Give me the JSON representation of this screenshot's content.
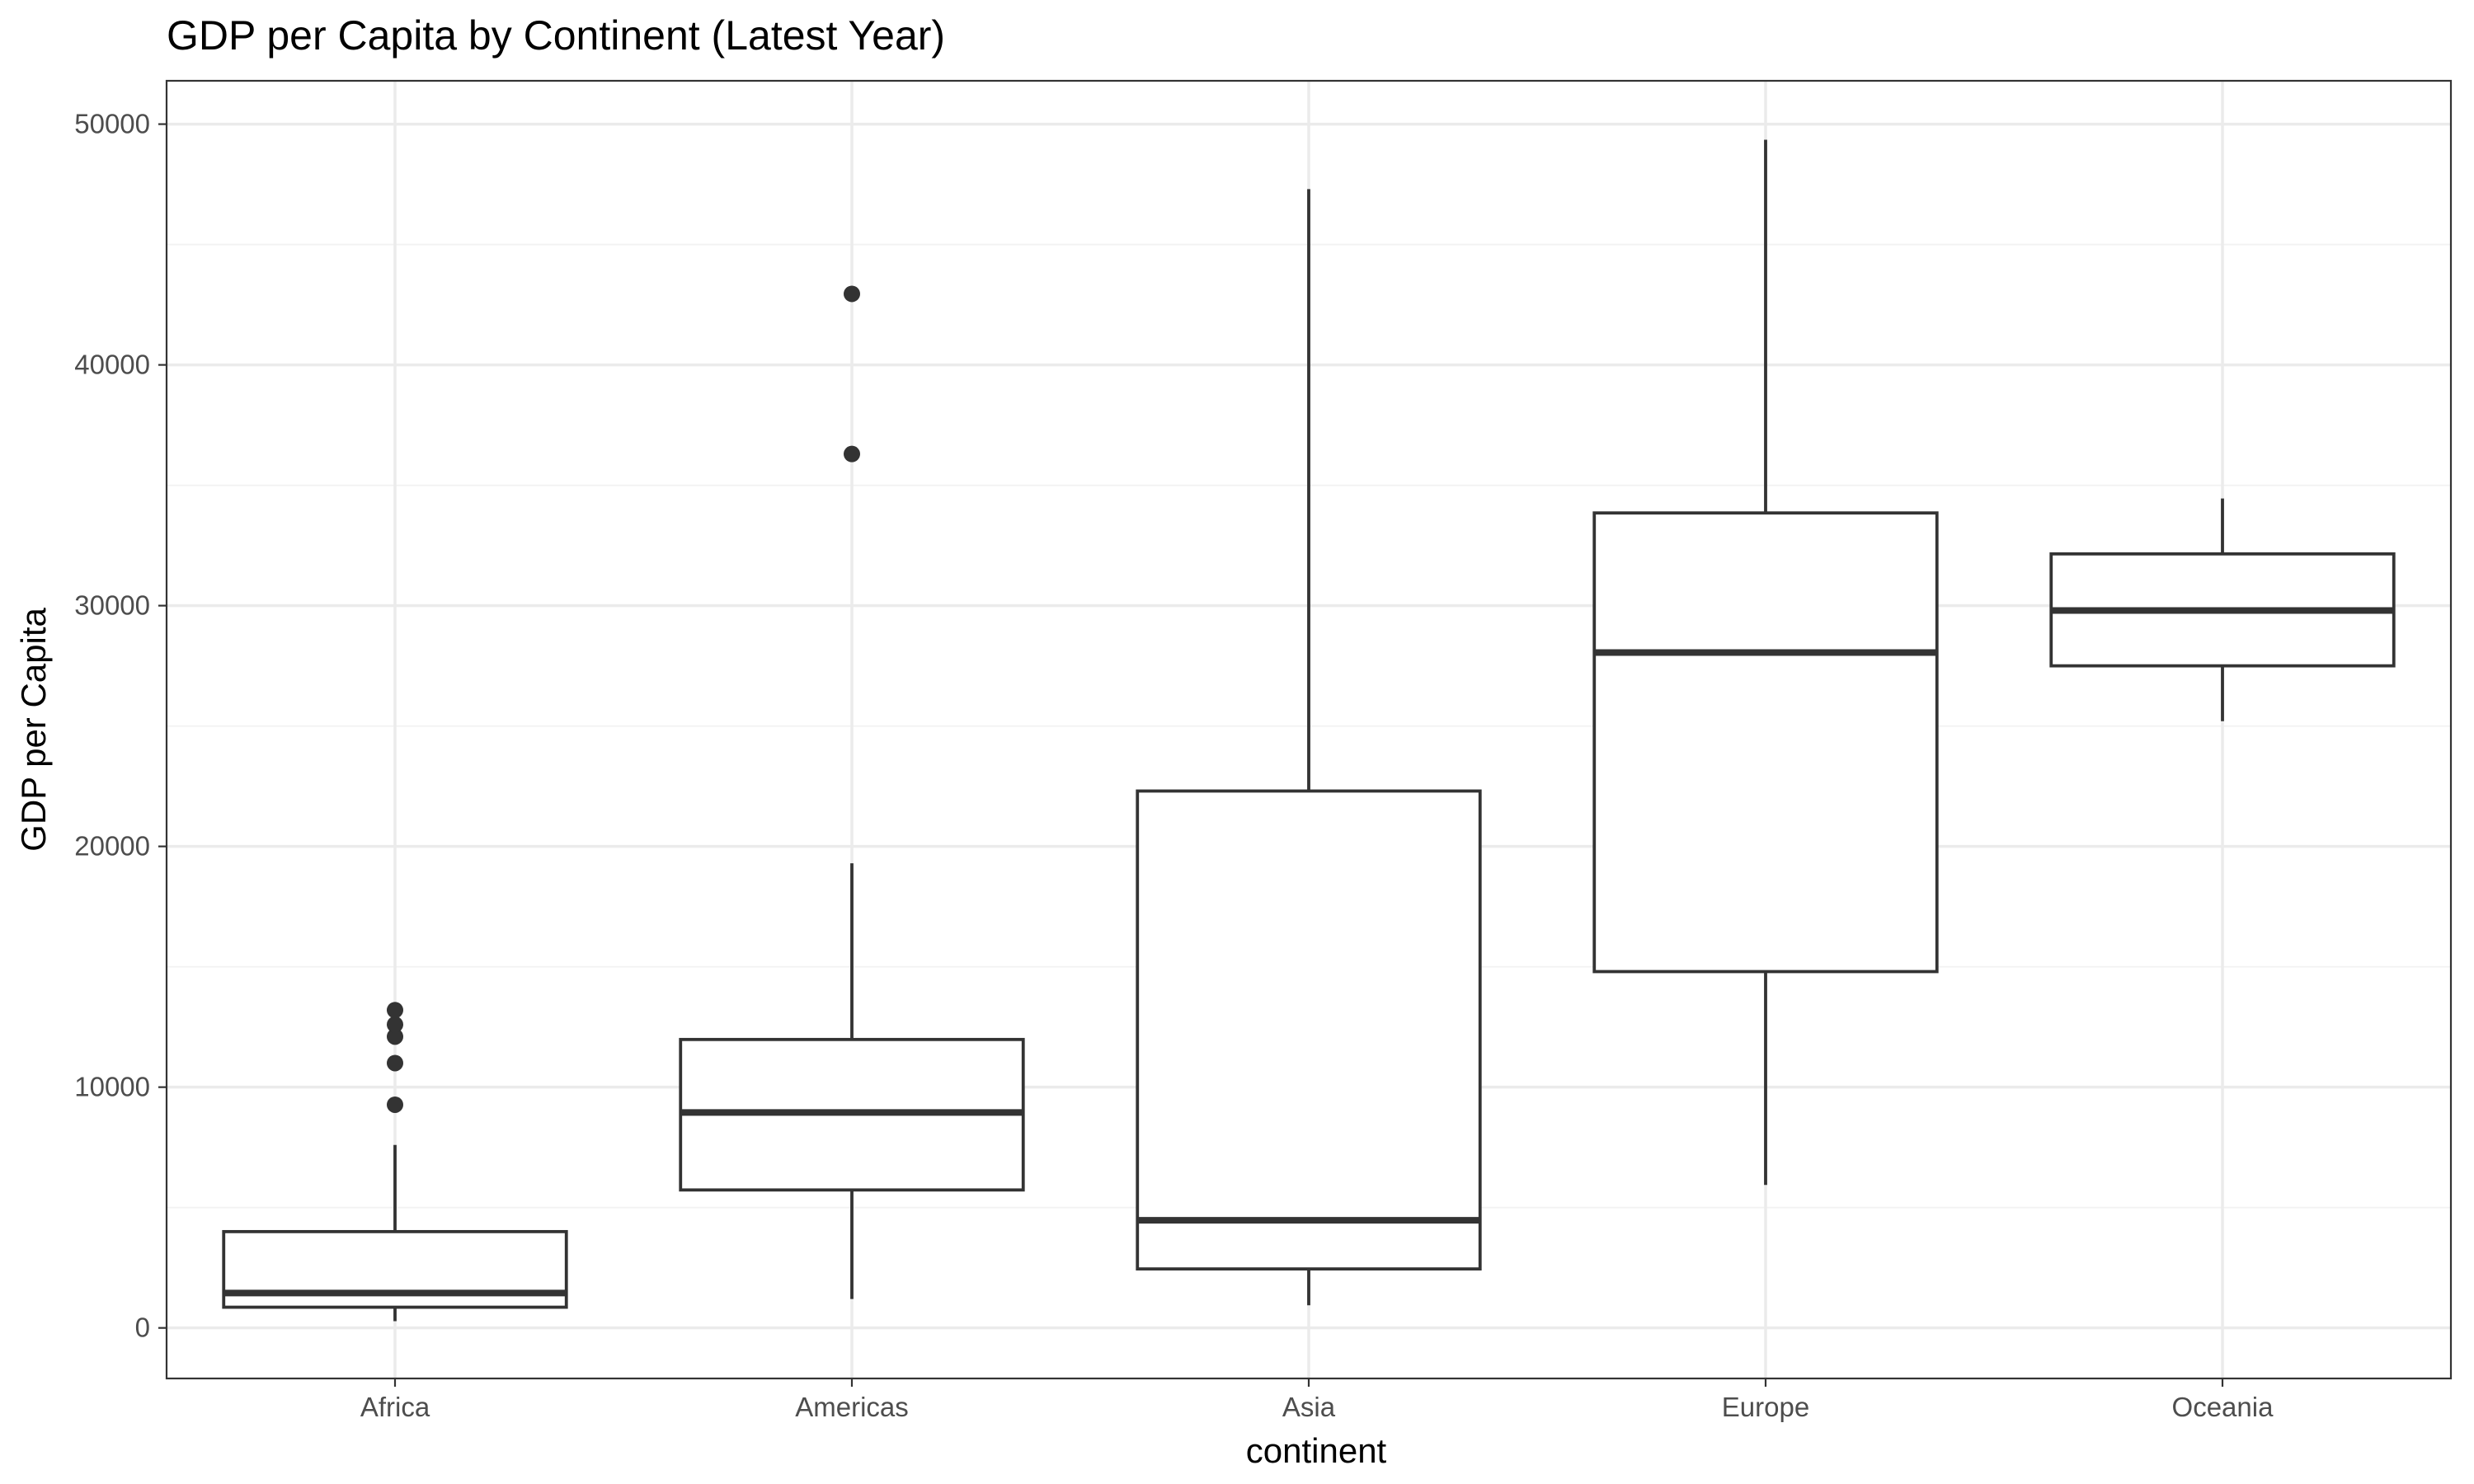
{
  "chart_data": {
    "type": "boxplot",
    "title": "GDP per Capita by Continent (Latest Year)",
    "xlabel": "continent",
    "ylabel": "GDP per Capita",
    "ylim": [
      -2100,
      51800
    ],
    "y_ticks": [
      0,
      10000,
      20000,
      30000,
      40000,
      50000
    ],
    "y_minor_ticks": [
      5000,
      15000,
      25000,
      35000,
      45000
    ],
    "grid": true,
    "categories": [
      "Africa",
      "Americas",
      "Asia",
      "Europe",
      "Oceania"
    ],
    "boxes": [
      {
        "category": "Africa",
        "whisker_low": 280,
        "q1": 860,
        "median": 1450,
        "q3": 4000,
        "whisker_high": 7600,
        "outliers": [
          9270,
          11000,
          12100,
          12600,
          13200
        ]
      },
      {
        "category": "Americas",
        "whisker_low": 1200,
        "q1": 5730,
        "median": 8950,
        "q3": 11980,
        "whisker_high": 19300,
        "outliers": [
          36300,
          42950
        ]
      },
      {
        "category": "Asia",
        "whisker_low": 940,
        "q1": 2450,
        "median": 4470,
        "q3": 22300,
        "whisker_high": 47300,
        "outliers": []
      },
      {
        "category": "Europe",
        "whisker_low": 5940,
        "q1": 14800,
        "median": 28050,
        "q3": 33850,
        "whisker_high": 49350,
        "outliers": []
      },
      {
        "category": "Oceania",
        "whisker_low": 25200,
        "q1": 27500,
        "median": 29800,
        "q3": 32150,
        "whisker_high": 34450,
        "outliers": []
      }
    ]
  }
}
